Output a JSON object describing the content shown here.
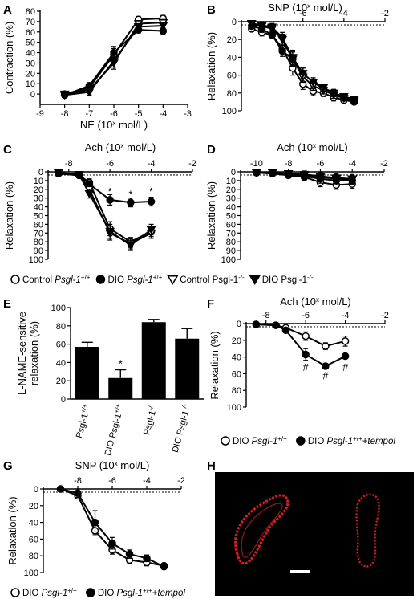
{
  "panels": {
    "A": {
      "label": "A"
    },
    "B": {
      "label": "B"
    },
    "C": {
      "label": "C"
    },
    "D": {
      "label": "D"
    },
    "E": {
      "label": "E"
    },
    "F": {
      "label": "F"
    },
    "G": {
      "label": "G"
    },
    "H": {
      "label": "H"
    }
  },
  "legend_cd": {
    "items": [
      {
        "marker": "circle-open",
        "text": "Control ",
        "italic": "Psgl-1",
        "sup": "+/+"
      },
      {
        "marker": "circle-filled",
        "text": "DIO ",
        "italic": "Psgl-1",
        "sup": "+/+"
      },
      {
        "marker": "tri-open",
        "text": "Control Psgl-1",
        "italic": "",
        "sup": "-/-"
      },
      {
        "marker": "tri-filled",
        "text": "DIO Psgl-1",
        "italic": "",
        "sup": "-/-"
      }
    ]
  },
  "legend_f": {
    "items": [
      {
        "marker": "circle-open",
        "text": "DIO ",
        "italic": "Psgl-1",
        "sup": "+/+",
        "tail": ""
      },
      {
        "marker": "circle-filled",
        "text": "DIO ",
        "italic": "Psgl-1",
        "sup": "+/+",
        "tail": "+tempol"
      }
    ]
  },
  "legend_g": {
    "items": [
      {
        "marker": "circle-open",
        "text": "DIO ",
        "italic": "Psgl-1",
        "sup": "+/+",
        "tail": ""
      },
      {
        "marker": "circle-filled",
        "text": "DIO ",
        "italic": "Psgl-1",
        "sup": "+/+",
        "tail": "+tempol"
      }
    ]
  },
  "colors": {
    "line": "#000000",
    "vessel": "#d81e1e",
    "micrograph_bg": "#000000",
    "scale_bar": "#ffffff"
  },
  "chart_data": [
    {
      "panel": "A",
      "type": "line",
      "ylabel": "Contraction (%)",
      "xlabel": "NE (10",
      "xlabel_sup": "x",
      "xlabel_tail": " mol/L)",
      "xlim": [
        -9,
        -3
      ],
      "ylim": [
        -10,
        80
      ],
      "xticks": [
        "-9",
        "-8",
        "-7",
        "-6",
        "-5",
        "-4",
        "-3"
      ],
      "yticks": [
        "0",
        "10",
        "20",
        "30",
        "40",
        "50",
        "60",
        "70",
        "80"
      ],
      "series": [
        {
          "marker": "circle-open",
          "x": [
            -8,
            -7,
            -6,
            -5,
            -4
          ],
          "y": [
            0,
            6,
            38,
            72,
            73
          ],
          "err": [
            2,
            3,
            6,
            3,
            3
          ]
        },
        {
          "marker": "circle-filled",
          "x": [
            -8,
            -7,
            -6,
            -5,
            -4
          ],
          "y": [
            -1,
            8,
            40,
            62,
            61
          ],
          "err": [
            2,
            3,
            6,
            3,
            3
          ]
        },
        {
          "marker": "tri-open",
          "x": [
            -8,
            -7,
            -6,
            -5,
            -4
          ],
          "y": [
            0,
            4,
            30,
            68,
            69
          ],
          "err": [
            2,
            3,
            6,
            3,
            3
          ]
        },
        {
          "marker": "tri-filled",
          "x": [
            -8,
            -7,
            -6,
            -5,
            -4
          ],
          "y": [
            -1,
            2,
            32,
            65,
            66
          ],
          "err": [
            2,
            3,
            6,
            3,
            3
          ]
        }
      ]
    },
    {
      "panel": "B",
      "type": "line",
      "title": "SNP (10",
      "title_sup": "x",
      "title_tail": " mol/L)",
      "ylabel": "Relaxation (%)",
      "xlim": [
        -9,
        -2
      ],
      "ylim": [
        0,
        100
      ],
      "y_inverted": true,
      "x_axis_on_top": true,
      "xticks": [
        "-6",
        "-4",
        "-2"
      ],
      "yticks": [
        "0",
        "20",
        "40",
        "60",
        "80",
        "100"
      ],
      "series": [
        {
          "marker": "circle-open",
          "x": [
            -8.5,
            -8,
            -7.5,
            -7,
            -6.5,
            -6,
            -5.5,
            -5,
            -4.5,
            -4,
            -3.5
          ],
          "y": [
            8,
            12,
            15,
            30,
            52,
            70,
            78,
            80,
            85,
            88,
            90
          ],
          "err": [
            3,
            4,
            4,
            6,
            8,
            6,
            5,
            4,
            4,
            3,
            3
          ]
        },
        {
          "marker": "circle-filled",
          "x": [
            -8.5,
            -8,
            -7.5,
            -7,
            -6.5,
            -6,
            -5.5,
            -5,
            -4.5,
            -4,
            -3.5
          ],
          "y": [
            5,
            8,
            15,
            33,
            42,
            58,
            68,
            75,
            80,
            85,
            88
          ],
          "err": [
            3,
            4,
            4,
            6,
            8,
            6,
            5,
            4,
            4,
            3,
            3
          ]
        },
        {
          "marker": "tri-open",
          "x": [
            -8.5,
            -8,
            -7.5,
            -7,
            -6.5,
            -6,
            -5.5,
            -5,
            -4.5,
            -4,
            -3.5
          ],
          "y": [
            3,
            5,
            8,
            20,
            42,
            62,
            72,
            77,
            82,
            86,
            89
          ],
          "err": [
            3,
            4,
            4,
            6,
            8,
            6,
            5,
            4,
            4,
            3,
            3
          ]
        },
        {
          "marker": "tri-filled",
          "x": [
            -8.5,
            -8,
            -7.5,
            -7,
            -6.5,
            -6,
            -5.5,
            -5,
            -4.5,
            -4,
            -3.5
          ],
          "y": [
            2,
            4,
            6,
            18,
            40,
            58,
            68,
            74,
            80,
            84,
            87
          ],
          "err": [
            3,
            4,
            4,
            6,
            8,
            6,
            5,
            4,
            4,
            3,
            3
          ]
        }
      ]
    },
    {
      "panel": "C",
      "type": "line",
      "title": "Ach (10",
      "title_sup": "x",
      "title_tail": " mol/L)",
      "ylabel": "Relaxation (%)",
      "xlim": [
        -9,
        -2
      ],
      "ylim": [
        0,
        100
      ],
      "y_inverted": true,
      "x_axis_on_top": true,
      "xticks": [
        "-8",
        "-6",
        "-4",
        "-2"
      ],
      "yticks": [
        "0",
        "10",
        "20",
        "30",
        "40",
        "50",
        "60",
        "70",
        "80",
        "90",
        "100"
      ],
      "significance": [
        {
          "x": -6,
          "y": 22,
          "text": "*"
        },
        {
          "x": -5,
          "y": 25,
          "text": "*"
        },
        {
          "x": -4,
          "y": 22,
          "text": "*"
        }
      ],
      "series": [
        {
          "marker": "circle-open",
          "x": [
            -8.5,
            -7.5,
            -7,
            -6,
            -5,
            -4
          ],
          "y": [
            2,
            4,
            12,
            65,
            80,
            68
          ],
          "err": [
            1,
            2,
            4,
            8,
            5,
            6
          ]
        },
        {
          "marker": "circle-filled",
          "x": [
            -8.5,
            -7.5,
            -7,
            -6,
            -5,
            -4
          ],
          "y": [
            2,
            4,
            14,
            32,
            35,
            34
          ],
          "err": [
            1,
            2,
            4,
            6,
            5,
            5
          ]
        },
        {
          "marker": "tri-open",
          "x": [
            -8.5,
            -7.5,
            -7,
            -6,
            -5,
            -4
          ],
          "y": [
            1,
            3,
            20,
            70,
            82,
            70
          ],
          "err": [
            1,
            2,
            5,
            8,
            5,
            6
          ]
        },
        {
          "marker": "tri-filled",
          "x": [
            -8.5,
            -7.5,
            -7,
            -6,
            -5,
            -4
          ],
          "y": [
            1,
            3,
            25,
            68,
            84,
            66
          ],
          "err": [
            1,
            2,
            5,
            8,
            5,
            6
          ]
        }
      ]
    },
    {
      "panel": "D",
      "type": "line",
      "title": "Ach (10",
      "title_sup": "x",
      "title_tail": " mol/L)",
      "ylabel": "Relaxation (%)",
      "xlim": [
        -11,
        -2
      ],
      "ylim": [
        0,
        100
      ],
      "y_inverted": true,
      "x_axis_on_top": true,
      "xticks": [
        "-10",
        "-8",
        "-6",
        "-4",
        "-2"
      ],
      "yticks": [
        "0",
        "10",
        "20",
        "30",
        "40",
        "50",
        "60",
        "70",
        "80",
        "90",
        "100"
      ],
      "series": [
        {
          "marker": "circle-open",
          "x": [
            -10,
            -9,
            -8,
            -7,
            -6,
            -5,
            -4
          ],
          "y": [
            1,
            2,
            4,
            6,
            12,
            15,
            14
          ],
          "err": [
            1,
            2,
            3,
            4,
            5,
            5,
            5
          ]
        },
        {
          "marker": "circle-filled",
          "x": [
            -10,
            -9,
            -8,
            -7,
            -6,
            -5,
            -4
          ],
          "y": [
            1,
            2,
            3,
            5,
            8,
            10,
            10
          ],
          "err": [
            1,
            2,
            3,
            4,
            5,
            5,
            5
          ]
        },
        {
          "marker": "tri-open",
          "x": [
            -10,
            -9,
            -8,
            -7,
            -6,
            -5,
            -4
          ],
          "y": [
            1,
            1,
            2,
            4,
            6,
            8,
            9
          ],
          "err": [
            1,
            2,
            3,
            4,
            5,
            5,
            5
          ]
        },
        {
          "marker": "tri-filled",
          "x": [
            -10,
            -9,
            -8,
            -7,
            -6,
            -5,
            -4
          ],
          "y": [
            1,
            1,
            2,
            3,
            5,
            7,
            8
          ],
          "err": [
            1,
            2,
            3,
            4,
            5,
            5,
            5
          ]
        }
      ]
    },
    {
      "panel": "E",
      "type": "bar",
      "ylabel": "L-NAME-sensitive relaxation (%)",
      "ylim": [
        0,
        100
      ],
      "yticks": [
        "0",
        "20",
        "40",
        "60",
        "80",
        "100"
      ],
      "categories": [
        {
          "base": "Psgl-1",
          "sup": "+/+"
        },
        {
          "base": "DIO Psgl-1",
          "sup": "+/+"
        },
        {
          "base": "Psgl-1",
          "sup": "-/-"
        },
        {
          "base": "DIO Psgl-1",
          "sup": "-/-"
        }
      ],
      "values": [
        57,
        23,
        84,
        66
      ],
      "err": [
        5,
        9,
        3,
        11
      ],
      "significance": [
        {
          "index": 1,
          "text": "*"
        }
      ]
    },
    {
      "panel": "F",
      "type": "line",
      "title": "Ach (10",
      "title_sup": "x",
      "title_tail": " mol/L)",
      "ylabel": "Relaxation (%)",
      "xlim": [
        -9,
        -2
      ],
      "ylim": [
        0,
        100
      ],
      "y_inverted": true,
      "x_axis_on_top": true,
      "xticks": [
        "-8",
        "-6",
        "-4",
        "-2"
      ],
      "yticks": [
        "0",
        "20",
        "40",
        "60",
        "80",
        "100"
      ],
      "significance": [
        {
          "x": -6,
          "y": 52,
          "text": "#"
        },
        {
          "x": -5,
          "y": 62,
          "text": "#"
        },
        {
          "x": -4,
          "y": 52,
          "text": "#"
        }
      ],
      "series": [
        {
          "marker": "circle-open",
          "x": [
            -8.5,
            -7.5,
            -7,
            -6,
            -5,
            -4
          ],
          "y": [
            1,
            2,
            5,
            15,
            27,
            21
          ],
          "err": [
            1,
            2,
            2,
            5,
            4,
            6
          ]
        },
        {
          "marker": "circle-filled",
          "x": [
            -8.5,
            -7.5,
            -7,
            -6,
            -5,
            -4
          ],
          "y": [
            1,
            2,
            8,
            37,
            51,
            39
          ],
          "err": [
            1,
            2,
            3,
            7,
            3,
            3
          ]
        }
      ]
    },
    {
      "panel": "G",
      "type": "line",
      "title": "SNP (10",
      "title_sup": "x",
      "title_tail": " mol/L)",
      "ylabel": "Relaxation (%)",
      "xlim": [
        -10,
        -2
      ],
      "ylim": [
        0,
        100
      ],
      "y_inverted": true,
      "x_axis_on_top": true,
      "xticks": [
        "-8",
        "-6",
        "-4",
        "-2"
      ],
      "yticks": [
        "0",
        "20",
        "40",
        "60",
        "80",
        "100"
      ],
      "series": [
        {
          "marker": "circle-open",
          "x": [
            -9,
            -8,
            -7,
            -6,
            -5,
            -4,
            -3
          ],
          "y": [
            0,
            8,
            50,
            73,
            85,
            88,
            92
          ],
          "err": [
            1,
            4,
            6,
            5,
            4,
            4,
            2
          ]
        },
        {
          "marker": "circle-filled",
          "x": [
            -9,
            -8,
            -7,
            -6,
            -5,
            -4,
            -3
          ],
          "y": [
            0,
            5,
            40,
            65,
            78,
            83,
            93
          ],
          "err": [
            1,
            5,
            14,
            7,
            5,
            4,
            2
          ]
        }
      ]
    }
  ]
}
